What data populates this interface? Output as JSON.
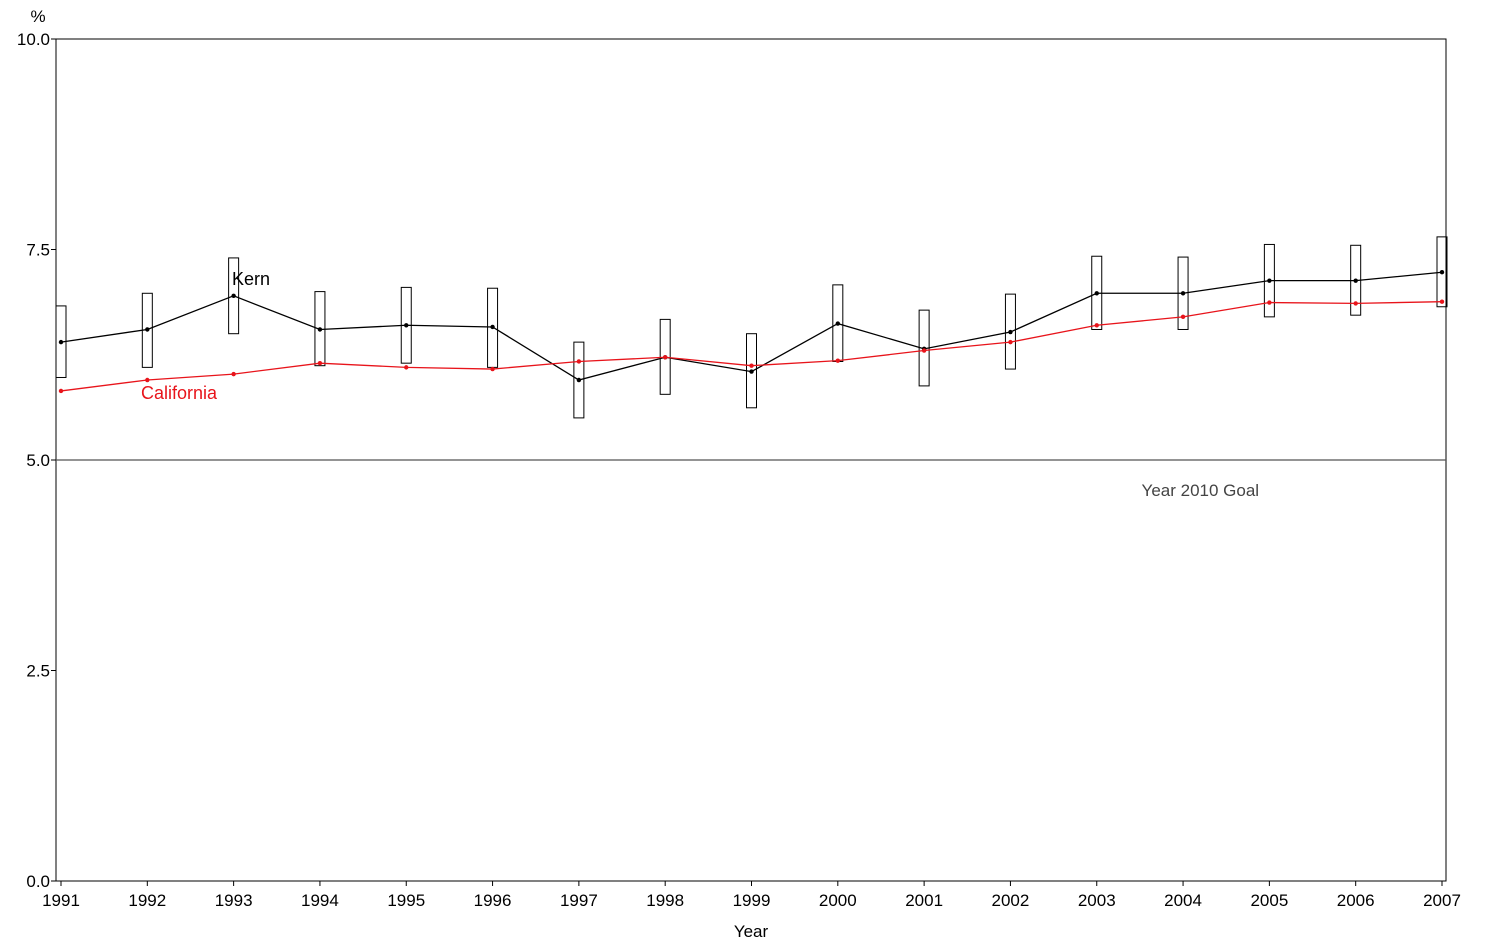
{
  "chart_data": {
    "type": "line",
    "xlabel": "Year",
    "ylabel": "%",
    "ylim": [
      0,
      10
    ],
    "y_ticks": [
      "0.0",
      "2.5",
      "5.0",
      "7.5",
      "10.0"
    ],
    "x": [
      "1991",
      "1992",
      "1993",
      "1994",
      "1995",
      "1996",
      "1997",
      "1998",
      "1999",
      "2000",
      "2001",
      "2002",
      "2003",
      "2004",
      "2005",
      "2006",
      "2007"
    ],
    "series": [
      {
        "name": "Kern",
        "color": "#000000",
        "values": [
          6.4,
          6.55,
          6.95,
          6.55,
          6.6,
          6.58,
          5.95,
          6.22,
          6.05,
          6.62,
          6.32,
          6.52,
          6.98,
          6.98,
          7.13,
          7.13,
          7.23
        ],
        "ci_low": [
          5.98,
          6.1,
          6.5,
          6.12,
          6.15,
          6.1,
          5.5,
          5.78,
          5.62,
          6.17,
          5.88,
          6.08,
          6.55,
          6.55,
          6.7,
          6.72,
          6.82
        ],
        "ci_high": [
          6.83,
          6.98,
          7.4,
          7.0,
          7.05,
          7.04,
          6.4,
          6.67,
          6.5,
          7.08,
          6.78,
          6.97,
          7.42,
          7.41,
          7.56,
          7.55,
          7.65
        ]
      },
      {
        "name": "California",
        "color": "#e8141b",
        "values": [
          5.82,
          5.95,
          6.02,
          6.15,
          6.1,
          6.08,
          6.17,
          6.22,
          6.12,
          6.18,
          6.3,
          6.4,
          6.6,
          6.7,
          6.87,
          6.86,
          6.88
        ]
      }
    ],
    "reference_line": {
      "value": 5.0,
      "label": "Year 2010 Goal"
    }
  }
}
